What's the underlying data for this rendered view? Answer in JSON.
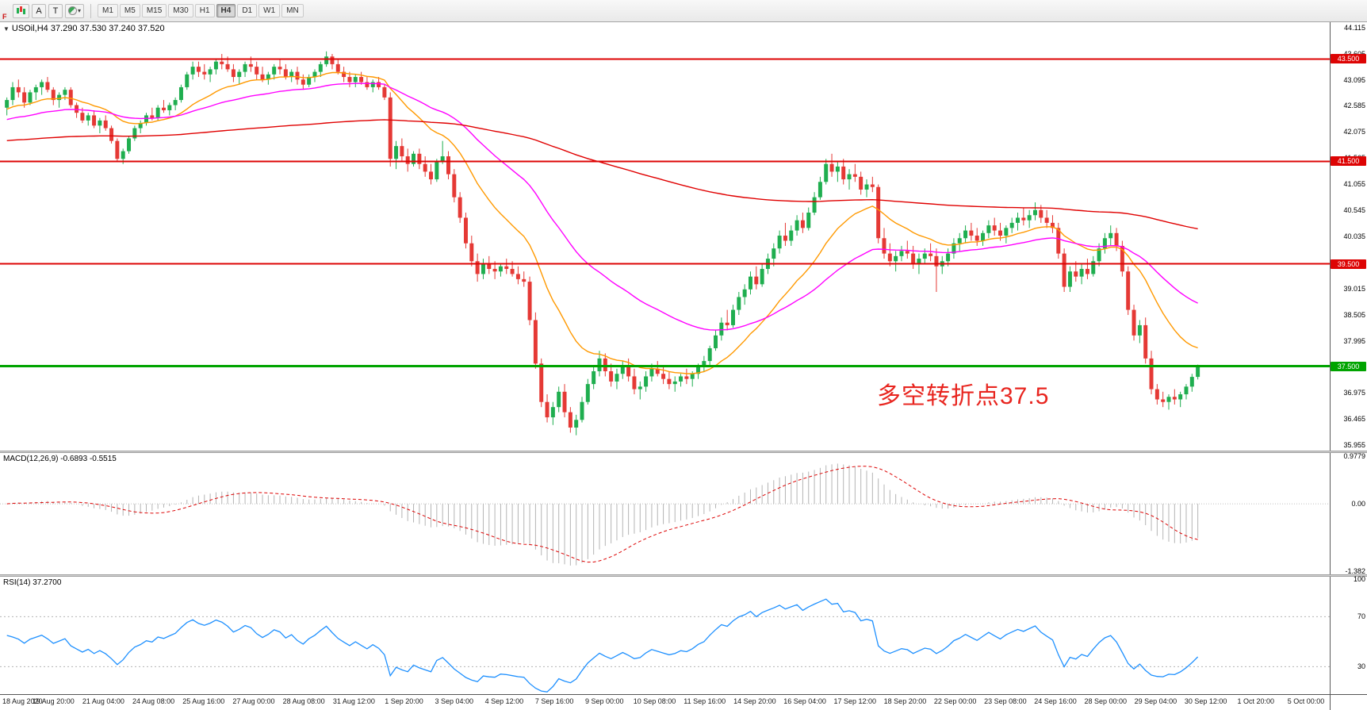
{
  "toolbar": {
    "left_tools": {
      "a_label": "A",
      "t_label": "T",
      "f_badge": "F"
    },
    "timeframes": [
      "M1",
      "M5",
      "M15",
      "M30",
      "H1",
      "H4",
      "D1",
      "W1",
      "MN"
    ],
    "active_timeframe": "H4"
  },
  "main_chart": {
    "symbol_line": "USOil,H4 37.290 37.530 37.240 37.520",
    "annotation": "多空转折点37.5",
    "price_axis_labels": [
      "44.115",
      "43.605",
      "43.095",
      "42.585",
      "42.075",
      "41.565",
      "41.055",
      "40.545",
      "40.035",
      "39.525",
      "39.015",
      "38.505",
      "37.995",
      "37.485",
      "36.975",
      "36.465",
      "35.955"
    ],
    "price_axis_range": [
      44.22,
      35.85
    ],
    "hlines": [
      {
        "price": 43.5,
        "label": "43.500",
        "color": "#dd0404",
        "width": 2
      },
      {
        "price": 41.5,
        "label": "41.500",
        "color": "#dd0404",
        "width": 2
      },
      {
        "price": 39.5,
        "label": "39.500",
        "color": "#dd0404",
        "width": 2
      },
      {
        "price": 37.5,
        "label": "37.500",
        "color": "#00a400",
        "width": 3
      }
    ]
  },
  "macd_panel": {
    "label": "MACD(12,26,9) -0.6893 -0.5515",
    "params": {
      "fast": 12,
      "slow": 26,
      "signal": 9
    },
    "axis_labels": [
      "0.9779",
      "0.00",
      "-1.382"
    ],
    "axis_values": [
      0.9779,
      0,
      -1.382
    ]
  },
  "rsi_panel": {
    "label": "RSI(14) 37.2700",
    "period": 14,
    "axis_labels": [
      "100",
      "70",
      "30"
    ],
    "axis_values": [
      100,
      70,
      30
    ],
    "levels": [
      70,
      30
    ]
  },
  "colors": {
    "bull": "#1fae4f",
    "bear": "#e53935",
    "macd_hist": "#b4b4b4",
    "macd_signal": "#dd0404",
    "rsi_line": "#1e90ff",
    "annotation": "#e8251f"
  },
  "chart_data": {
    "type": "candlestick",
    "symbol": "USOil",
    "timeframe": "H4",
    "x_labels": [
      "18 Aug 2020",
      "19 Aug 20:00",
      "21 Aug 04:00",
      "24 Aug 08:00",
      "25 Aug 16:00",
      "27 Aug 00:00",
      "28 Aug 08:00",
      "31 Aug 12:00",
      "1 Sep 20:00",
      "3 Sep 04:00",
      "4 Sep 12:00",
      "7 Sep 16:00",
      "9 Sep 00:00",
      "10 Sep 08:00",
      "11 Sep 16:00",
      "14 Sep 20:00",
      "16 Sep 04:00",
      "17 Sep 12:00",
      "18 Sep 20:00",
      "22 Sep 00:00",
      "23 Sep 08:00",
      "24 Sep 16:00",
      "28 Sep 00:00",
      "29 Sep 04:00",
      "30 Sep 12:00",
      "1 Oct 20:00",
      "5 Oct 00:00"
    ],
    "overlays": [
      {
        "name": "ma-fast-orange",
        "period": 18,
        "seed": 42.5,
        "color": "#ff9900"
      },
      {
        "name": "ma-mid-magenta",
        "period": 45,
        "seed": 42.3,
        "color": "#ff00ff"
      },
      {
        "name": "ma-slow-red",
        "period": 250,
        "seed": 41.9,
        "color": "#e00000"
      }
    ],
    "candles": [
      [
        42.55,
        42.75,
        42.4,
        42.7
      ],
      [
        42.7,
        43.05,
        42.6,
        42.95
      ],
      [
        42.95,
        43.1,
        42.75,
        42.85
      ],
      [
        42.85,
        42.95,
        42.55,
        42.65
      ],
      [
        42.65,
        42.9,
        42.6,
        42.85
      ],
      [
        42.85,
        43.0,
        42.7,
        42.95
      ],
      [
        42.95,
        43.1,
        42.8,
        43.05
      ],
      [
        43.05,
        43.15,
        42.85,
        42.9
      ],
      [
        42.9,
        42.95,
        42.6,
        42.7
      ],
      [
        42.7,
        42.85,
        42.55,
        42.8
      ],
      [
        42.8,
        42.95,
        42.7,
        42.9
      ],
      [
        42.9,
        42.95,
        42.55,
        42.6
      ],
      [
        42.6,
        42.65,
        42.35,
        42.45
      ],
      [
        42.45,
        42.55,
        42.25,
        42.3
      ],
      [
        42.3,
        42.45,
        42.2,
        42.4
      ],
      [
        42.4,
        42.5,
        42.15,
        42.2
      ],
      [
        42.2,
        42.35,
        42.05,
        42.3
      ],
      [
        42.3,
        42.4,
        42.1,
        42.15
      ],
      [
        42.15,
        42.2,
        41.85,
        41.9
      ],
      [
        41.9,
        41.95,
        41.5,
        41.55
      ],
      [
        41.55,
        41.75,
        41.45,
        41.7
      ],
      [
        41.7,
        42.0,
        41.65,
        41.95
      ],
      [
        41.95,
        42.2,
        41.9,
        42.15
      ],
      [
        42.15,
        42.3,
        42.05,
        42.25
      ],
      [
        42.25,
        42.45,
        42.2,
        42.4
      ],
      [
        42.4,
        42.55,
        42.3,
        42.35
      ],
      [
        42.35,
        42.6,
        42.3,
        42.55
      ],
      [
        42.55,
        42.7,
        42.45,
        42.5
      ],
      [
        42.5,
        42.65,
        42.4,
        42.6
      ],
      [
        42.6,
        42.75,
        42.5,
        42.7
      ],
      [
        42.7,
        43.0,
        42.65,
        42.95
      ],
      [
        42.95,
        43.25,
        42.9,
        43.2
      ],
      [
        43.2,
        43.45,
        43.1,
        43.35
      ],
      [
        43.35,
        43.45,
        43.15,
        43.25
      ],
      [
        43.25,
        43.4,
        43.1,
        43.2
      ],
      [
        43.2,
        43.35,
        43.05,
        43.3
      ],
      [
        43.3,
        43.5,
        43.2,
        43.45
      ],
      [
        43.45,
        43.6,
        43.3,
        43.4
      ],
      [
        43.4,
        43.55,
        43.25,
        43.3
      ],
      [
        43.3,
        43.4,
        43.05,
        43.15
      ],
      [
        43.15,
        43.3,
        43.0,
        43.25
      ],
      [
        43.25,
        43.45,
        43.15,
        43.4
      ],
      [
        43.4,
        43.55,
        43.25,
        43.35
      ],
      [
        43.35,
        43.45,
        43.1,
        43.2
      ],
      [
        43.2,
        43.35,
        43.05,
        43.1
      ],
      [
        43.1,
        43.25,
        43.0,
        43.2
      ],
      [
        43.2,
        43.4,
        43.1,
        43.35
      ],
      [
        43.35,
        43.5,
        43.2,
        43.3
      ],
      [
        43.3,
        43.4,
        43.1,
        43.15
      ],
      [
        43.15,
        43.3,
        43.05,
        43.25
      ],
      [
        43.25,
        43.35,
        43.0,
        43.1
      ],
      [
        43.1,
        43.2,
        42.9,
        43.0
      ],
      [
        43.0,
        43.2,
        42.95,
        43.15
      ],
      [
        43.15,
        43.3,
        43.05,
        43.25
      ],
      [
        43.25,
        43.45,
        43.15,
        43.4
      ],
      [
        43.4,
        43.65,
        43.35,
        43.55
      ],
      [
        43.55,
        43.6,
        43.3,
        43.4
      ],
      [
        43.4,
        43.5,
        43.2,
        43.25
      ],
      [
        43.25,
        43.35,
        43.05,
        43.15
      ],
      [
        43.15,
        43.25,
        42.95,
        43.05
      ],
      [
        43.05,
        43.2,
        42.95,
        43.15
      ],
      [
        43.15,
        43.25,
        43.0,
        43.05
      ],
      [
        43.05,
        43.15,
        42.9,
        42.95
      ],
      [
        42.95,
        43.1,
        42.85,
        43.05
      ],
      [
        43.05,
        43.15,
        42.9,
        42.95
      ],
      [
        42.95,
        43.0,
        42.7,
        42.75
      ],
      [
        42.75,
        42.85,
        41.4,
        41.55
      ],
      [
        41.55,
        41.9,
        41.35,
        41.8
      ],
      [
        41.8,
        41.95,
        41.5,
        41.6
      ],
      [
        41.6,
        41.75,
        41.3,
        41.45
      ],
      [
        41.45,
        41.7,
        41.4,
        41.65
      ],
      [
        41.65,
        41.75,
        41.35,
        41.45
      ],
      [
        41.45,
        41.6,
        41.2,
        41.3
      ],
      [
        41.3,
        41.45,
        41.05,
        41.15
      ],
      [
        41.15,
        41.55,
        41.1,
        41.5
      ],
      [
        41.5,
        41.9,
        41.45,
        41.6
      ],
      [
        41.6,
        41.7,
        41.15,
        41.25
      ],
      [
        41.25,
        41.35,
        40.7,
        40.8
      ],
      [
        40.8,
        40.9,
        40.3,
        40.4
      ],
      [
        40.4,
        40.5,
        39.8,
        39.9
      ],
      [
        39.9,
        40.05,
        39.45,
        39.55
      ],
      [
        39.55,
        39.7,
        39.15,
        39.3
      ],
      [
        39.3,
        39.6,
        39.2,
        39.5
      ],
      [
        39.5,
        39.65,
        39.3,
        39.4
      ],
      [
        39.4,
        39.55,
        39.2,
        39.35
      ],
      [
        39.35,
        39.5,
        39.25,
        39.45
      ],
      [
        39.45,
        39.6,
        39.3,
        39.4
      ],
      [
        39.4,
        39.55,
        39.25,
        39.3
      ],
      [
        39.3,
        39.45,
        39.1,
        39.2
      ],
      [
        39.2,
        39.35,
        39.05,
        39.15
      ],
      [
        39.15,
        39.25,
        38.3,
        38.4
      ],
      [
        38.4,
        38.55,
        37.45,
        37.55
      ],
      [
        37.55,
        37.65,
        36.7,
        36.8
      ],
      [
        36.8,
        36.95,
        36.4,
        36.5
      ],
      [
        36.5,
        36.8,
        36.35,
        36.7
      ],
      [
        36.7,
        37.1,
        36.6,
        37.0
      ],
      [
        37.0,
        37.15,
        36.5,
        36.6
      ],
      [
        36.6,
        36.7,
        36.2,
        36.3
      ],
      [
        36.3,
        36.55,
        36.15,
        36.45
      ],
      [
        36.45,
        36.9,
        36.4,
        36.8
      ],
      [
        36.8,
        37.25,
        36.75,
        37.15
      ],
      [
        37.15,
        37.5,
        37.05,
        37.4
      ],
      [
        37.4,
        37.8,
        37.3,
        37.65
      ],
      [
        37.65,
        37.75,
        37.3,
        37.4
      ],
      [
        37.4,
        37.55,
        37.1,
        37.2
      ],
      [
        37.2,
        37.45,
        37.05,
        37.35
      ],
      [
        37.35,
        37.6,
        37.25,
        37.5
      ],
      [
        37.5,
        37.65,
        37.2,
        37.3
      ],
      [
        37.3,
        37.45,
        36.95,
        37.05
      ],
      [
        37.05,
        37.2,
        36.85,
        37.1
      ],
      [
        37.1,
        37.4,
        37.0,
        37.3
      ],
      [
        37.3,
        37.55,
        37.2,
        37.45
      ],
      [
        37.45,
        37.6,
        37.3,
        37.35
      ],
      [
        37.35,
        37.5,
        37.15,
        37.25
      ],
      [
        37.25,
        37.4,
        37.05,
        37.15
      ],
      [
        37.15,
        37.3,
        37.0,
        37.2
      ],
      [
        37.2,
        37.35,
        37.1,
        37.3
      ],
      [
        37.3,
        37.45,
        37.15,
        37.25
      ],
      [
        37.25,
        37.4,
        37.1,
        37.35
      ],
      [
        37.35,
        37.55,
        37.25,
        37.5
      ],
      [
        37.5,
        37.7,
        37.4,
        37.6
      ],
      [
        37.6,
        37.9,
        37.5,
        37.85
      ],
      [
        37.85,
        38.2,
        37.8,
        38.1
      ],
      [
        38.1,
        38.45,
        38.0,
        38.35
      ],
      [
        38.35,
        38.6,
        38.2,
        38.3
      ],
      [
        38.3,
        38.7,
        38.25,
        38.6
      ],
      [
        38.6,
        38.95,
        38.5,
        38.85
      ],
      [
        38.85,
        39.1,
        38.7,
        39.0
      ],
      [
        39.0,
        39.35,
        38.9,
        39.25
      ],
      [
        39.25,
        39.45,
        39.0,
        39.1
      ],
      [
        39.1,
        39.5,
        39.05,
        39.4
      ],
      [
        39.4,
        39.7,
        39.3,
        39.6
      ],
      [
        39.6,
        39.9,
        39.45,
        39.8
      ],
      [
        39.8,
        40.15,
        39.7,
        40.05
      ],
      [
        40.05,
        40.3,
        39.85,
        39.95
      ],
      [
        39.95,
        40.25,
        39.85,
        40.15
      ],
      [
        40.15,
        40.45,
        40.05,
        40.35
      ],
      [
        40.35,
        40.5,
        40.1,
        40.2
      ],
      [
        40.2,
        40.6,
        40.15,
        40.5
      ],
      [
        40.5,
        40.9,
        40.45,
        40.8
      ],
      [
        40.8,
        41.2,
        40.75,
        41.1
      ],
      [
        41.1,
        41.55,
        41.05,
        41.45
      ],
      [
        41.45,
        41.65,
        41.2,
        41.3
      ],
      [
        41.3,
        41.5,
        41.1,
        41.4
      ],
      [
        41.4,
        41.55,
        41.05,
        41.15
      ],
      [
        41.15,
        41.35,
        40.95,
        41.25
      ],
      [
        41.25,
        41.45,
        41.1,
        41.2
      ],
      [
        41.2,
        41.3,
        40.85,
        40.95
      ],
      [
        40.95,
        41.15,
        40.8,
        41.05
      ],
      [
        41.05,
        41.2,
        40.9,
        41.0
      ],
      [
        41.0,
        41.05,
        39.9,
        40.0
      ],
      [
        40.0,
        40.2,
        39.6,
        39.7
      ],
      [
        39.7,
        39.9,
        39.45,
        39.55
      ],
      [
        39.55,
        39.75,
        39.35,
        39.65
      ],
      [
        39.65,
        39.85,
        39.55,
        39.75
      ],
      [
        39.75,
        39.95,
        39.6,
        39.7
      ],
      [
        39.7,
        39.85,
        39.4,
        39.5
      ],
      [
        39.5,
        39.7,
        39.3,
        39.6
      ],
      [
        39.6,
        39.8,
        39.5,
        39.7
      ],
      [
        39.7,
        39.9,
        39.55,
        39.65
      ],
      [
        39.65,
        39.8,
        38.95,
        39.45
      ],
      [
        39.45,
        39.65,
        39.3,
        39.55
      ],
      [
        39.55,
        39.8,
        39.45,
        39.7
      ],
      [
        39.7,
        40.0,
        39.6,
        39.9
      ],
      [
        39.9,
        40.1,
        39.75,
        40.0
      ],
      [
        40.0,
        40.25,
        39.9,
        40.15
      ],
      [
        40.15,
        40.3,
        39.95,
        40.05
      ],
      [
        40.05,
        40.2,
        39.85,
        39.95
      ],
      [
        39.95,
        40.15,
        39.85,
        40.1
      ],
      [
        40.1,
        40.35,
        40.0,
        40.25
      ],
      [
        40.25,
        40.4,
        40.05,
        40.15
      ],
      [
        40.15,
        40.3,
        39.95,
        40.05
      ],
      [
        40.05,
        40.25,
        39.9,
        40.2
      ],
      [
        40.2,
        40.4,
        40.1,
        40.3
      ],
      [
        40.3,
        40.5,
        40.15,
        40.4
      ],
      [
        40.4,
        40.6,
        40.25,
        40.35
      ],
      [
        40.35,
        40.55,
        40.2,
        40.45
      ],
      [
        40.45,
        40.7,
        40.35,
        40.55
      ],
      [
        40.55,
        40.65,
        40.3,
        40.4
      ],
      [
        40.4,
        40.55,
        40.2,
        40.3
      ],
      [
        40.3,
        40.45,
        40.1,
        40.2
      ],
      [
        40.2,
        40.3,
        39.6,
        39.7
      ],
      [
        39.7,
        39.8,
        38.95,
        39.05
      ],
      [
        39.05,
        39.45,
        38.95,
        39.35
      ],
      [
        39.35,
        39.55,
        39.15,
        39.25
      ],
      [
        39.25,
        39.5,
        39.1,
        39.4
      ],
      [
        39.4,
        39.6,
        39.2,
        39.3
      ],
      [
        39.3,
        39.65,
        39.25,
        39.55
      ],
      [
        39.55,
        39.9,
        39.45,
        39.8
      ],
      [
        39.8,
        40.1,
        39.7,
        40.0
      ],
      [
        40.0,
        40.25,
        39.85,
        40.1
      ],
      [
        40.1,
        40.2,
        39.75,
        39.85
      ],
      [
        39.85,
        39.95,
        39.25,
        39.35
      ],
      [
        39.35,
        39.45,
        38.5,
        38.6
      ],
      [
        38.6,
        38.7,
        38.0,
        38.1
      ],
      [
        38.1,
        38.4,
        37.95,
        38.3
      ],
      [
        38.3,
        38.45,
        37.55,
        37.65
      ],
      [
        37.65,
        37.8,
        36.95,
        37.05
      ],
      [
        37.05,
        37.15,
        36.75,
        36.85
      ],
      [
        36.85,
        37.0,
        36.7,
        36.8
      ],
      [
        36.8,
        36.95,
        36.65,
        36.9
      ],
      [
        36.9,
        37.05,
        36.75,
        36.85
      ],
      [
        36.85,
        37.0,
        36.7,
        36.95
      ],
      [
        36.95,
        37.15,
        36.85,
        37.1
      ],
      [
        37.1,
        37.35,
        37.0,
        37.29
      ],
      [
        37.29,
        37.53,
        37.24,
        37.52
      ]
    ]
  }
}
